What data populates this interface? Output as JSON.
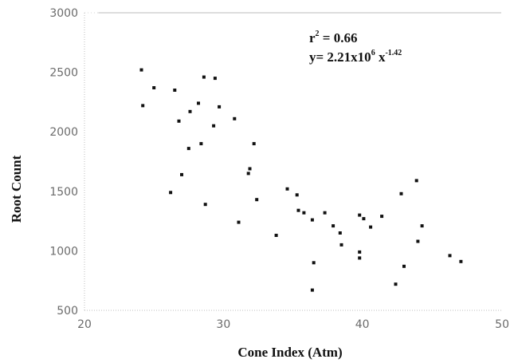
{
  "chart_data": {
    "type": "scatter",
    "title": "",
    "xlabel": "Cone Index (Atm)",
    "ylabel": "Root Count",
    "xlim": [
      20,
      50
    ],
    "ylim": [
      500,
      3000
    ],
    "x_ticks": [
      20,
      30,
      40,
      50
    ],
    "y_ticks": [
      500,
      1000,
      1500,
      2000,
      2500,
      3000
    ],
    "grid": false,
    "legend": "none",
    "colors": {
      "points": "#111111",
      "fit": "#bbbbbb",
      "axis": "#bdbdbd"
    },
    "annotation": {
      "r2_base": "r",
      "r2_sup": "2",
      "r2_rest": " = 0.66",
      "eq_base": "y= 2.21x10",
      "eq_sup1": "6",
      "eq_mid": " x",
      "eq_sup2": "-1.42"
    },
    "fit": {
      "a": 2210000,
      "b": -1.42
    },
    "points": [
      [
        24.1,
        2520
      ],
      [
        24.2,
        2220
      ],
      [
        25.0,
        2370
      ],
      [
        26.2,
        1490
      ],
      [
        26.5,
        2350
      ],
      [
        26.8,
        2090
      ],
      [
        27.0,
        1640
      ],
      [
        27.5,
        1860
      ],
      [
        27.6,
        2170
      ],
      [
        28.2,
        2240
      ],
      [
        28.4,
        1900
      ],
      [
        28.6,
        2460
      ],
      [
        28.7,
        1390
      ],
      [
        29.3,
        2050
      ],
      [
        29.4,
        2450
      ],
      [
        29.7,
        2210
      ],
      [
        30.8,
        2110
      ],
      [
        31.1,
        1240
      ],
      [
        31.8,
        1650
      ],
      [
        31.9,
        1690
      ],
      [
        32.2,
        1900
      ],
      [
        32.4,
        1430
      ],
      [
        33.8,
        1130
      ],
      [
        34.6,
        1520
      ],
      [
        35.3,
        1470
      ],
      [
        35.4,
        1340
      ],
      [
        35.8,
        1320
      ],
      [
        36.4,
        1260
      ],
      [
        36.4,
        670
      ],
      [
        36.5,
        900
      ],
      [
        37.3,
        1320
      ],
      [
        37.9,
        1210
      ],
      [
        38.4,
        1150
      ],
      [
        38.5,
        1050
      ],
      [
        39.8,
        1300
      ],
      [
        39.8,
        990
      ],
      [
        39.8,
        940
      ],
      [
        40.1,
        1270
      ],
      [
        40.6,
        1200
      ],
      [
        41.4,
        1290
      ],
      [
        42.4,
        720
      ],
      [
        42.8,
        1480
      ],
      [
        43.0,
        870
      ],
      [
        43.9,
        1590
      ],
      [
        44.0,
        1080
      ],
      [
        44.3,
        1210
      ],
      [
        46.3,
        960
      ],
      [
        47.1,
        910
      ]
    ]
  }
}
